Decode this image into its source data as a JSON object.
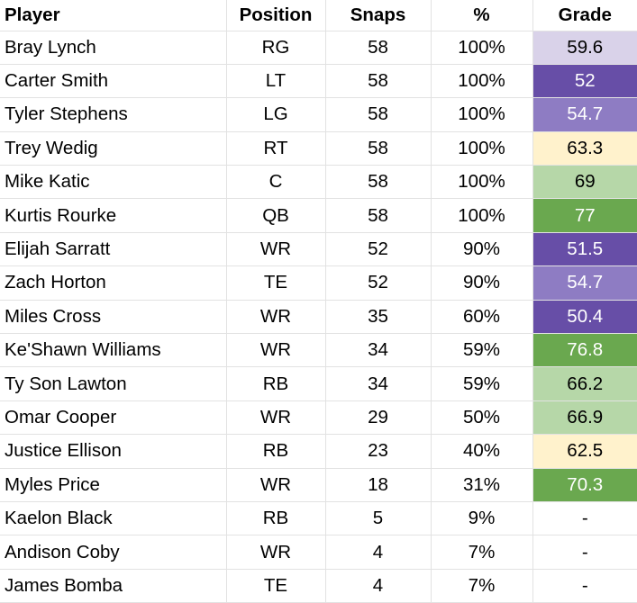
{
  "headers": {
    "player": "Player",
    "position": "Position",
    "snaps": "Snaps",
    "percent": "%",
    "grade": "Grade"
  },
  "grade_colors": {
    "light_purple": "#d9d2e9",
    "purple": "#674ea7",
    "medium_purple": "#8e7cc3",
    "cream": "#fff2cc",
    "light_green": "#b6d7a8",
    "green": "#6aa84f",
    "none": "#ffffff"
  },
  "rows": [
    {
      "player": "Bray Lynch",
      "position": "RG",
      "snaps": "58",
      "percent": "100%",
      "grade": "59.6",
      "color": "light_purple"
    },
    {
      "player": "Carter Smith",
      "position": "LT",
      "snaps": "58",
      "percent": "100%",
      "grade": "52",
      "color": "purple"
    },
    {
      "player": "Tyler Stephens",
      "position": "LG",
      "snaps": "58",
      "percent": "100%",
      "grade": "54.7",
      "color": "medium_purple"
    },
    {
      "player": "Trey Wedig",
      "position": "RT",
      "snaps": "58",
      "percent": "100%",
      "grade": "63.3",
      "color": "cream"
    },
    {
      "player": "Mike Katic",
      "position": "C",
      "snaps": "58",
      "percent": "100%",
      "grade": "69",
      "color": "light_green"
    },
    {
      "player": "Kurtis Rourke",
      "position": "QB",
      "snaps": "58",
      "percent": "100%",
      "grade": "77",
      "color": "green"
    },
    {
      "player": "Elijah Sarratt",
      "position": "WR",
      "snaps": "52",
      "percent": "90%",
      "grade": "51.5",
      "color": "purple"
    },
    {
      "player": "Zach Horton",
      "position": "TE",
      "snaps": "52",
      "percent": "90%",
      "grade": "54.7",
      "color": "medium_purple"
    },
    {
      "player": "Miles Cross",
      "position": "WR",
      "snaps": "35",
      "percent": "60%",
      "grade": "50.4",
      "color": "purple"
    },
    {
      "player": "Ke'Shawn Williams",
      "position": "WR",
      "snaps": "34",
      "percent": "59%",
      "grade": "76.8",
      "color": "green"
    },
    {
      "player": "Ty Son Lawton",
      "position": "RB",
      "snaps": "34",
      "percent": "59%",
      "grade": "66.2",
      "color": "light_green"
    },
    {
      "player": "Omar Cooper",
      "position": "WR",
      "snaps": "29",
      "percent": "50%",
      "grade": "66.9",
      "color": "light_green"
    },
    {
      "player": "Justice Ellison",
      "position": "RB",
      "snaps": "23",
      "percent": "40%",
      "grade": "62.5",
      "color": "cream"
    },
    {
      "player": "Myles Price",
      "position": "WR",
      "snaps": "18",
      "percent": "31%",
      "grade": "70.3",
      "color": "green"
    },
    {
      "player": "Kaelon Black",
      "position": "RB",
      "snaps": "5",
      "percent": "9%",
      "grade": "-",
      "color": "none"
    },
    {
      "player": "Andison Coby",
      "position": "WR",
      "snaps": "4",
      "percent": "7%",
      "grade": "-",
      "color": "none"
    },
    {
      "player": "James Bomba",
      "position": "TE",
      "snaps": "4",
      "percent": "7%",
      "grade": "-",
      "color": "none"
    }
  ]
}
